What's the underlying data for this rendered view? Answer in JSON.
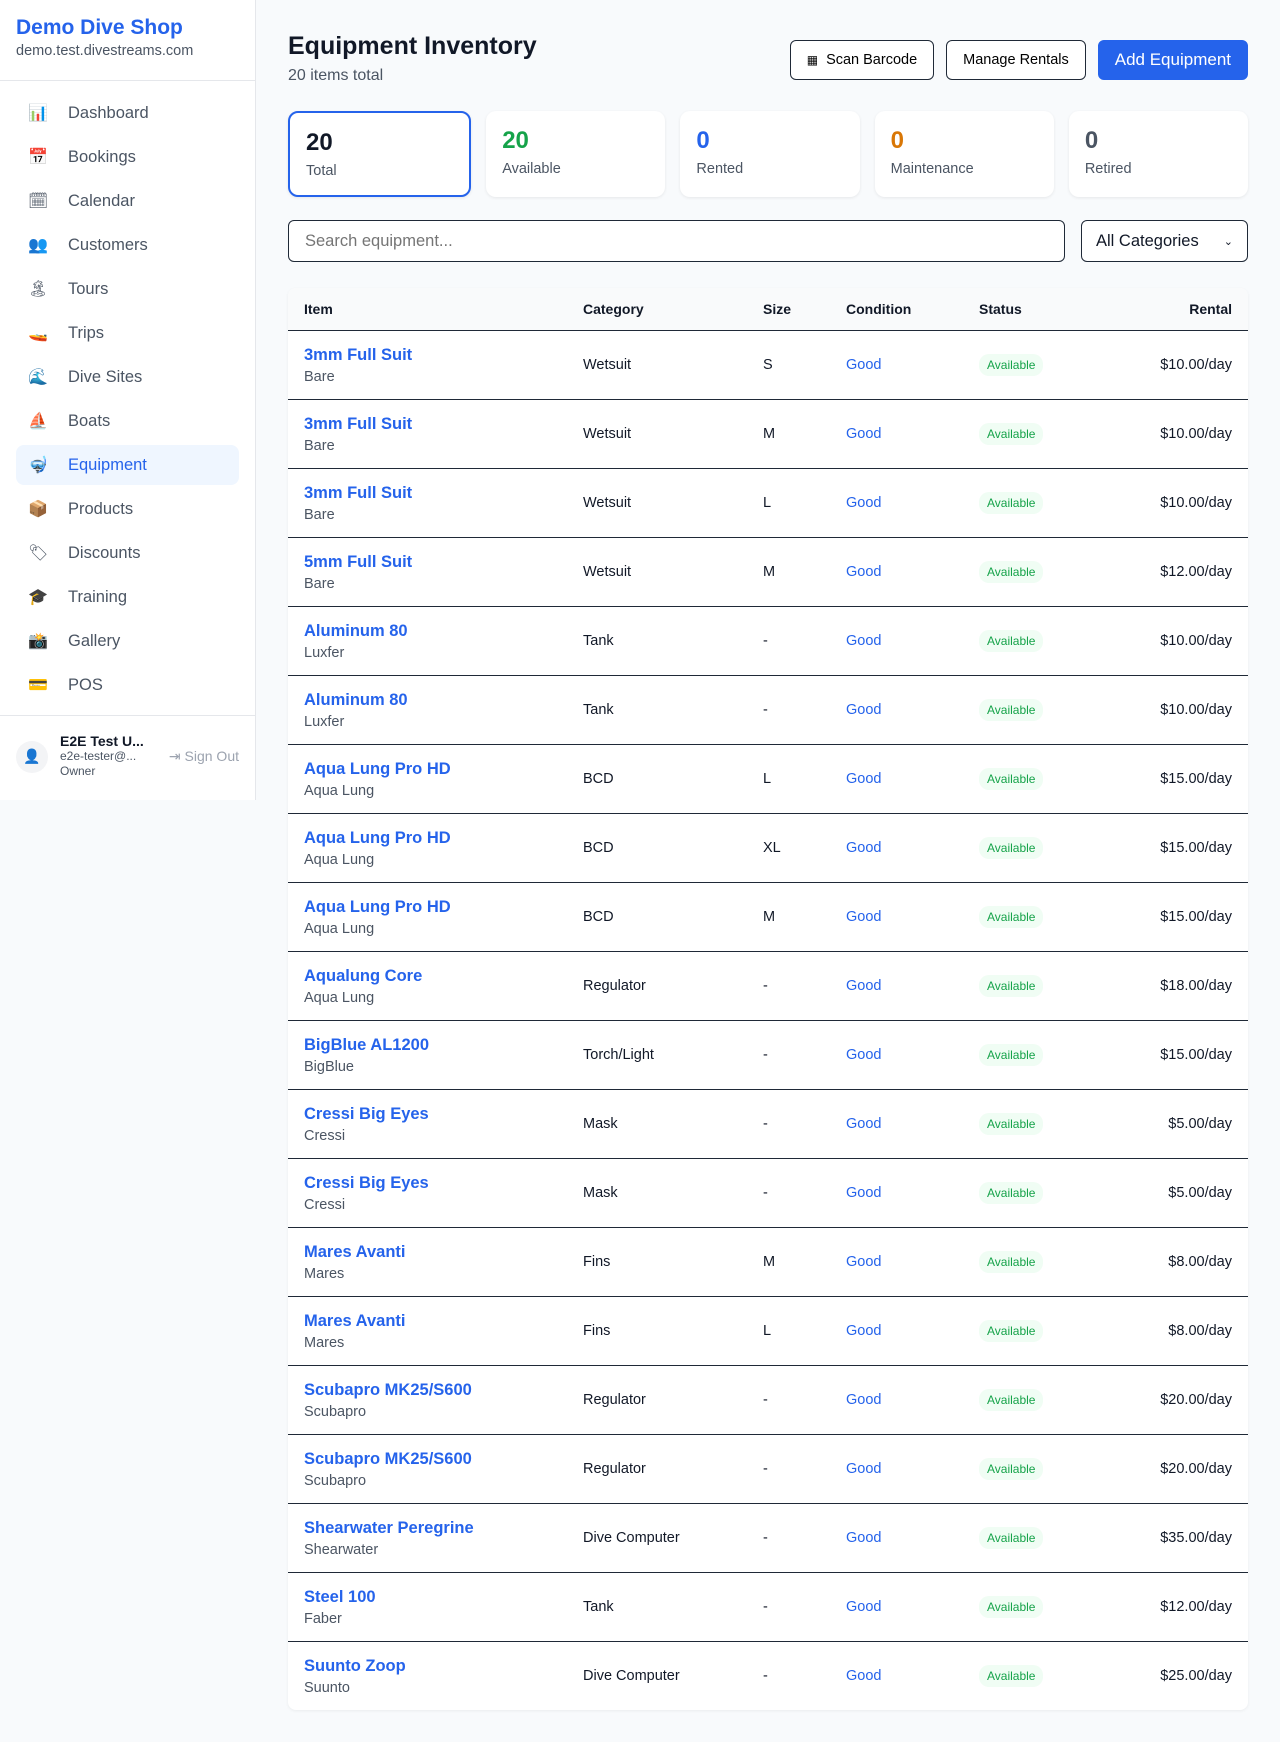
{
  "sidebar": {
    "brand": "Demo Dive Shop",
    "domain": "demo.test.divestreams.com",
    "items": [
      {
        "label": "Dashboard",
        "icon": "📊"
      },
      {
        "label": "Bookings",
        "icon": "📅"
      },
      {
        "label": "Calendar",
        "icon": "🗓"
      },
      {
        "label": "Customers",
        "icon": "👥"
      },
      {
        "label": "Tours",
        "icon": "🏝"
      },
      {
        "label": "Trips",
        "icon": "🚤"
      },
      {
        "label": "Dive Sites",
        "icon": "🌊"
      },
      {
        "label": "Boats",
        "icon": "⛵"
      },
      {
        "label": "Equipment",
        "icon": "🤿"
      },
      {
        "label": "Products",
        "icon": "📦"
      },
      {
        "label": "Discounts",
        "icon": "🏷"
      },
      {
        "label": "Training",
        "icon": "🎓"
      },
      {
        "label": "Gallery",
        "icon": "📸"
      },
      {
        "label": "POS",
        "icon": "💳"
      }
    ],
    "active": "Equipment",
    "user": {
      "name": "E2E Test U...",
      "email": "e2e-tester@...",
      "role": "Owner",
      "sign_out": "Sign Out"
    }
  },
  "header": {
    "title": "Equipment Inventory",
    "subtitle": "20 items total",
    "scan": "Scan Barcode",
    "manage": "Manage Rentals",
    "add": "Add Equipment"
  },
  "stats": [
    {
      "value": "20",
      "label": "Total",
      "color": "#111827"
    },
    {
      "value": "20",
      "label": "Available",
      "color": "#16a34a"
    },
    {
      "value": "0",
      "label": "Rented",
      "color": "#2563eb"
    },
    {
      "value": "0",
      "label": "Maintenance",
      "color": "#d97706"
    },
    {
      "value": "0",
      "label": "Retired",
      "color": "#4b5563"
    }
  ],
  "filters": {
    "search_placeholder": "Search equipment...",
    "category": "All Categories"
  },
  "table": {
    "headers": [
      "Item",
      "Category",
      "Size",
      "Condition",
      "Status",
      "Rental"
    ],
    "rows": [
      [
        "3mm Full Suit",
        "Bare",
        "Wetsuit",
        "S",
        "Good",
        "Available",
        "$10.00/day"
      ],
      [
        "3mm Full Suit",
        "Bare",
        "Wetsuit",
        "M",
        "Good",
        "Available",
        "$10.00/day"
      ],
      [
        "3mm Full Suit",
        "Bare",
        "Wetsuit",
        "L",
        "Good",
        "Available",
        "$10.00/day"
      ],
      [
        "5mm Full Suit",
        "Bare",
        "Wetsuit",
        "M",
        "Good",
        "Available",
        "$12.00/day"
      ],
      [
        "Aluminum 80",
        "Luxfer",
        "Tank",
        "-",
        "Good",
        "Available",
        "$10.00/day"
      ],
      [
        "Aluminum 80",
        "Luxfer",
        "Tank",
        "-",
        "Good",
        "Available",
        "$10.00/day"
      ],
      [
        "Aqua Lung Pro HD",
        "Aqua Lung",
        "BCD",
        "L",
        "Good",
        "Available",
        "$15.00/day"
      ],
      [
        "Aqua Lung Pro HD",
        "Aqua Lung",
        "BCD",
        "XL",
        "Good",
        "Available",
        "$15.00/day"
      ],
      [
        "Aqua Lung Pro HD",
        "Aqua Lung",
        "BCD",
        "M",
        "Good",
        "Available",
        "$15.00/day"
      ],
      [
        "Aqualung Core",
        "Aqua Lung",
        "Regulator",
        "-",
        "Good",
        "Available",
        "$18.00/day"
      ],
      [
        "BigBlue AL1200",
        "BigBlue",
        "Torch/Light",
        "-",
        "Good",
        "Available",
        "$15.00/day"
      ],
      [
        "Cressi Big Eyes",
        "Cressi",
        "Mask",
        "-",
        "Good",
        "Available",
        "$5.00/day"
      ],
      [
        "Cressi Big Eyes",
        "Cressi",
        "Mask",
        "-",
        "Good",
        "Available",
        "$5.00/day"
      ],
      [
        "Mares Avanti",
        "Mares",
        "Fins",
        "M",
        "Good",
        "Available",
        "$8.00/day"
      ],
      [
        "Mares Avanti",
        "Mares",
        "Fins",
        "L",
        "Good",
        "Available",
        "$8.00/day"
      ],
      [
        "Scubapro MK25/S600",
        "Scubapro",
        "Regulator",
        "-",
        "Good",
        "Available",
        "$20.00/day"
      ],
      [
        "Scubapro MK25/S600",
        "Scubapro",
        "Regulator",
        "-",
        "Good",
        "Available",
        "$20.00/day"
      ],
      [
        "Shearwater Peregrine",
        "Shearwater",
        "Dive Computer",
        "-",
        "Good",
        "Available",
        "$35.00/day"
      ],
      [
        "Steel 100",
        "Faber",
        "Tank",
        "-",
        "Good",
        "Available",
        "$12.00/day"
      ],
      [
        "Suunto Zoop",
        "Suunto",
        "Dive Computer",
        "-",
        "Good",
        "Available",
        "$25.00/day"
      ]
    ]
  }
}
